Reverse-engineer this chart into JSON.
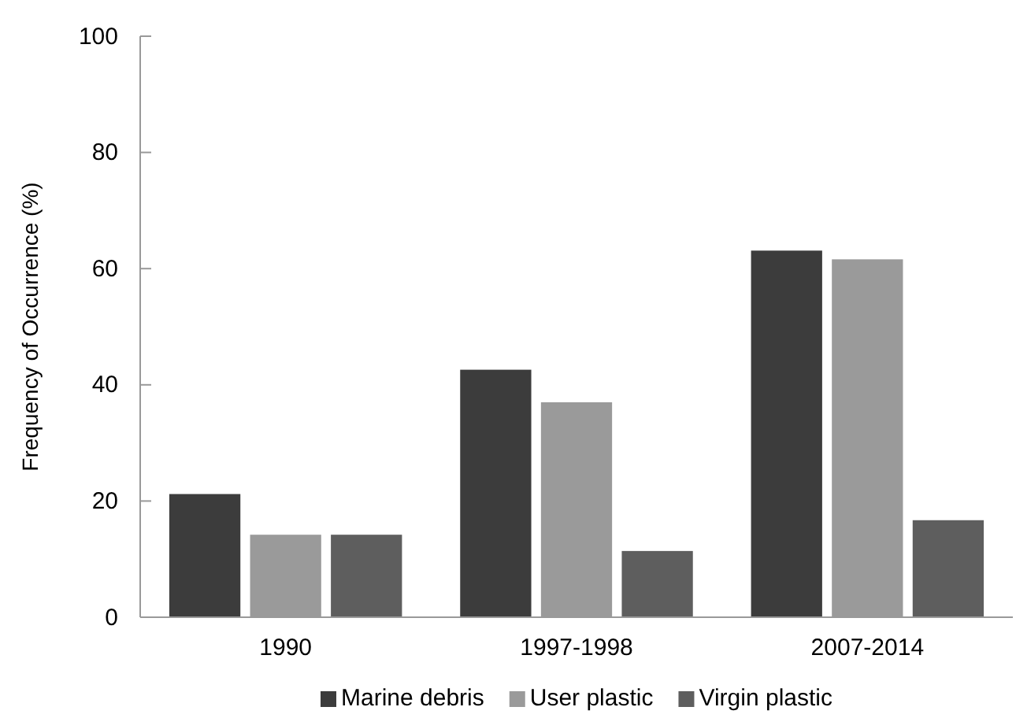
{
  "chart_data": {
    "type": "bar",
    "ylabel": "Frequency of Occurrence (%)",
    "categories": [
      "1990",
      "1997-1998",
      "2007-2014"
    ],
    "series": [
      {
        "name": "Marine debris",
        "color": "#3c3c3c",
        "values": [
          21.2,
          42.6,
          63.1
        ]
      },
      {
        "name": "User plastic",
        "color": "#9a9a9a",
        "values": [
          14.2,
          37.0,
          61.6
        ]
      },
      {
        "name": "Virgin plastic",
        "color": "#5e5e5e",
        "values": [
          14.2,
          11.4,
          16.7
        ]
      }
    ],
    "ylim": [
      0,
      100
    ],
    "yticks": [
      0,
      20,
      40,
      60,
      80,
      100
    ],
    "legend": "bottom"
  }
}
